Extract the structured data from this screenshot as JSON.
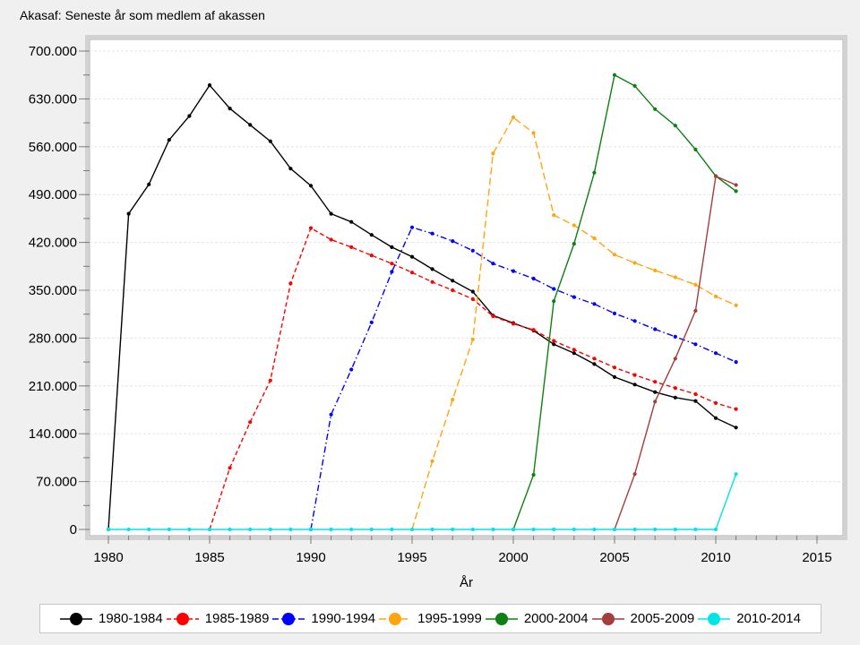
{
  "title": "Akasaf: Seneste år som medlem af akassen",
  "colors": {
    "window_background": "#f0f0f0",
    "plot_background": "#ffffff",
    "frame_border": "#d2d2d2",
    "frame_inner_line": "#ababab",
    "gridline": "#e5e5e5",
    "tick": "#7a7a7a",
    "legend_border": "#c6c6c6",
    "legend_background": "#ffffff"
  },
  "chart_data": {
    "type": "line",
    "title": "Akasaf: Seneste år som medlem af akassen",
    "xlabel": "År",
    "ylabel": "",
    "grid": true,
    "legend_position": "bottom",
    "xlim": [
      1980,
      2015
    ],
    "ylim": [
      0,
      700000
    ],
    "x_major_step": 5,
    "x_minor_step": 1,
    "y_major_step": 70000,
    "y_minor_step": 35000,
    "x_tick_labels": [
      "1980",
      "1985",
      "1990",
      "1995",
      "2000",
      "2005",
      "2010",
      "2015"
    ],
    "y_tick_labels": [
      "0",
      "70.000",
      "140.000",
      "210.000",
      "280.000",
      "350.000",
      "420.000",
      "490.000",
      "560.000",
      "630.000",
      "700.000"
    ],
    "series": [
      {
        "name": "1980-1984",
        "color": "#000000",
        "line_style": "solid",
        "marker": "dot",
        "start_year": 1980,
        "values": [
          0,
          462000,
          505000,
          570000,
          605000,
          650000,
          616000,
          592000,
          568000,
          528000,
          503000,
          462000,
          450000,
          431000,
          413000,
          399000,
          381000,
          364000,
          348000,
          313000,
          302000,
          291000,
          271000,
          258000,
          242000,
          223000,
          212000,
          201000,
          193000,
          188000,
          163000,
          149000
        ]
      },
      {
        "name": "1985-1989",
        "color": "#ff0000",
        "line_style": "dash",
        "marker": "dot",
        "start_year": 1985,
        "values": [
          0,
          90000,
          157000,
          218000,
          360000,
          441000,
          424000,
          413000,
          401000,
          389000,
          376000,
          362000,
          350000,
          337000,
          312000,
          301000,
          292000,
          276000,
          263000,
          250000,
          237000,
          226000,
          216000,
          207000,
          198000,
          185000,
          176000
        ]
      },
      {
        "name": "1990-1994",
        "color": "#0000ff",
        "line_style": "dashdot",
        "marker": "dot",
        "start_year": 1990,
        "values": [
          0,
          168000,
          234000,
          303000,
          377000,
          442000,
          433000,
          422000,
          408000,
          389000,
          378000,
          367000,
          352000,
          340000,
          330000,
          316000,
          305000,
          293000,
          282000,
          271000,
          258000,
          245000
        ]
      },
      {
        "name": "1995-1999",
        "color": "#ffa510",
        "line_style": "longdash",
        "marker": "dot",
        "start_year": 1995,
        "values": [
          0,
          100000,
          190000,
          278000,
          550000,
          603000,
          580000,
          460000,
          445000,
          426000,
          402000,
          390000,
          379000,
          369000,
          358000,
          341000,
          328000
        ]
      },
      {
        "name": "2000-2004",
        "color": "#0e8012",
        "line_style": "solid",
        "marker": "dot",
        "start_year": 2000,
        "values": [
          0,
          80000,
          334000,
          418000,
          522000,
          665000,
          649000,
          615000,
          591000,
          556000,
          517000,
          495000
        ]
      },
      {
        "name": "2005-2009",
        "color": "#a43d3d",
        "line_style": "solid",
        "marker": "dot",
        "start_year": 2005,
        "values": [
          0,
          81000,
          187000,
          250000,
          320000,
          517000,
          504000
        ]
      },
      {
        "name": "2010-2014",
        "color": "#00e5e5",
        "line_style": "solid",
        "marker": "dot",
        "start_year": 1980,
        "values": [
          0,
          0,
          0,
          0,
          0,
          0,
          0,
          0,
          0,
          0,
          0,
          0,
          0,
          0,
          0,
          0,
          0,
          0,
          0,
          0,
          0,
          0,
          0,
          0,
          0,
          0,
          0,
          0,
          0,
          0,
          0,
          81000
        ]
      }
    ]
  }
}
